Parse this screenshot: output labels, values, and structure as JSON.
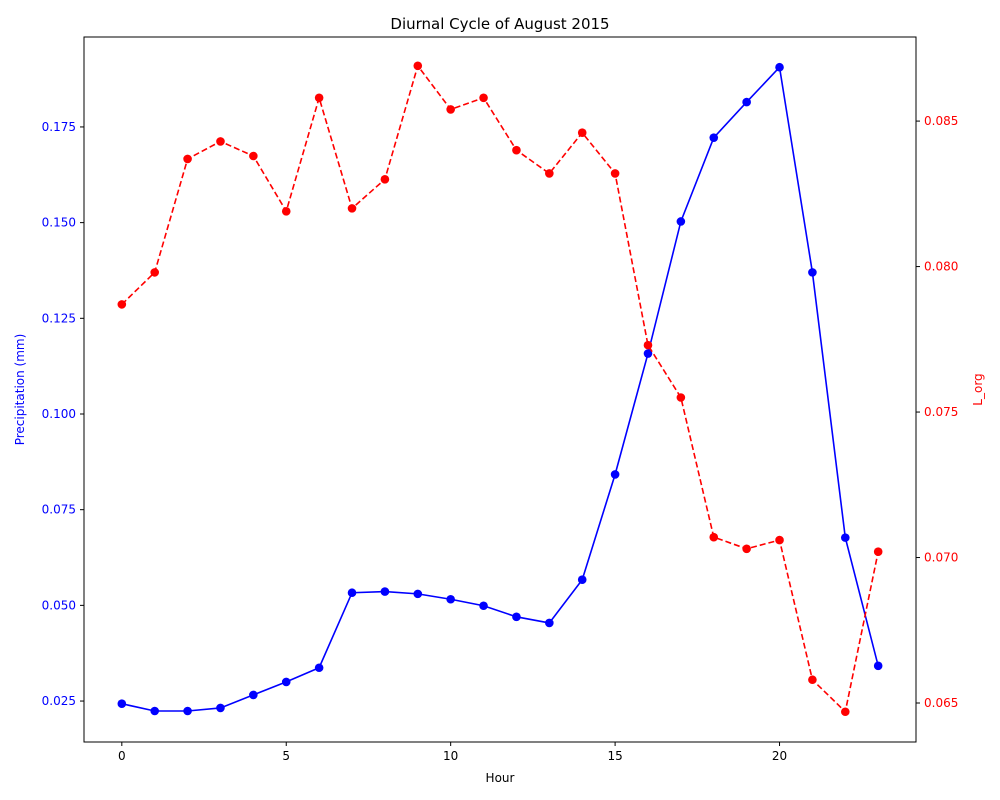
{
  "chart_data": {
    "type": "line",
    "title": "Diurnal Cycle of August 2015",
    "xlabel": "Hour",
    "ylabel_left": "Precipitation (mm)",
    "ylabel_right": "L_org",
    "x": [
      0,
      1,
      2,
      3,
      4,
      5,
      6,
      7,
      8,
      9,
      10,
      11,
      12,
      13,
      14,
      15,
      16,
      17,
      18,
      19,
      20,
      21,
      22,
      23
    ],
    "xlim": [
      -1.15,
      24.15
    ],
    "xticks": [
      0,
      5,
      10,
      15,
      20
    ],
    "xtick_labels": [
      "0",
      "5",
      "10",
      "15",
      "20"
    ],
    "y_left_lim": [
      0.0143,
      0.1985
    ],
    "y_left_ticks": [
      0.025,
      0.05,
      0.075,
      0.1,
      0.125,
      0.15,
      0.175
    ],
    "y_left_tick_labels": [
      "0.025",
      "0.050",
      "0.075",
      "0.100",
      "0.125",
      "0.150",
      "0.175"
    ],
    "y_right_lim": [
      0.06366,
      0.08789
    ],
    "y_right_ticks": [
      0.065,
      0.07,
      0.075,
      0.08,
      0.085
    ],
    "y_right_tick_labels": [
      "0.065",
      "0.070",
      "0.075",
      "0.080",
      "0.085"
    ],
    "series": [
      {
        "axis": "left",
        "color": "#0000ff",
        "style": "solid",
        "values": [
          0.0243,
          0.0224,
          0.0224,
          0.0232,
          0.0266,
          0.03,
          0.0337,
          0.0533,
          0.0536,
          0.053,
          0.0516,
          0.0499,
          0.047,
          0.0454,
          0.0567,
          0.0842,
          0.1158,
          0.1503,
          0.1722,
          0.1815,
          0.1906,
          0.137,
          0.0677,
          0.0342
        ]
      },
      {
        "axis": "right",
        "color": "#ff0000",
        "style": "dashed",
        "values": [
          0.0787,
          0.0798,
          0.0837,
          0.0843,
          0.0838,
          0.0819,
          0.0858,
          0.082,
          0.083,
          0.0869,
          0.0854,
          0.0858,
          0.084,
          0.0832,
          0.0846,
          0.0832,
          0.0773,
          0.0755,
          0.0707,
          0.0703,
          0.0706,
          0.0658,
          0.0647,
          0.0702
        ]
      }
    ],
    "grid": false,
    "legend": "none"
  }
}
